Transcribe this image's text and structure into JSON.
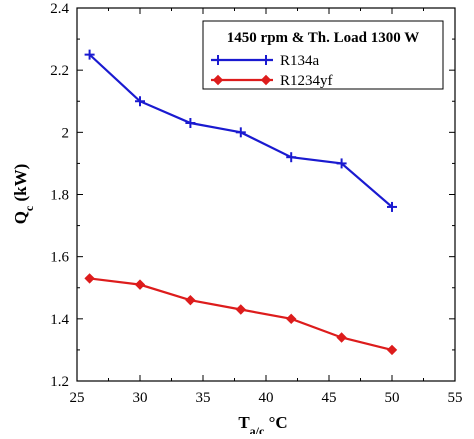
{
  "chart_data": {
    "type": "line",
    "xlabel": {
      "main": "T",
      "sub": "a/c",
      "suffix": " °C"
    },
    "ylabel": {
      "main": "Q",
      "sub": "c",
      "suffix": " (kW)"
    },
    "xlim": [
      25,
      55
    ],
    "ylim": [
      1.2,
      2.4
    ],
    "xticks": [
      25,
      30,
      35,
      40,
      45,
      50,
      55
    ],
    "yticks": [
      1.2,
      1.4,
      1.6,
      1.8,
      2,
      2.2,
      2.4
    ],
    "xtick_labels": [
      "25",
      "30",
      "35",
      "40",
      "45",
      "50",
      "55"
    ],
    "ytick_labels": [
      "1.2",
      "1.4",
      "1.6",
      "1.8",
      "2",
      "2.2",
      "2.4"
    ],
    "grid": false,
    "legend": {
      "title": "1450 rpm & Th. Load 1300 W",
      "placement": "top-right"
    },
    "series": [
      {
        "name": "R134a",
        "color": "#1a1ad0",
        "marker": "plus",
        "x": [
          26,
          30,
          34,
          38,
          42,
          46,
          50
        ],
        "y": [
          2.25,
          2.1,
          2.03,
          2.0,
          1.92,
          1.9,
          1.76
        ]
      },
      {
        "name": "R1234yf",
        "color": "#dd1c1c",
        "marker": "diamond",
        "x": [
          26,
          30,
          34,
          38,
          42,
          46,
          50
        ],
        "y": [
          1.53,
          1.51,
          1.46,
          1.43,
          1.4,
          1.34,
          1.3
        ]
      }
    ]
  }
}
